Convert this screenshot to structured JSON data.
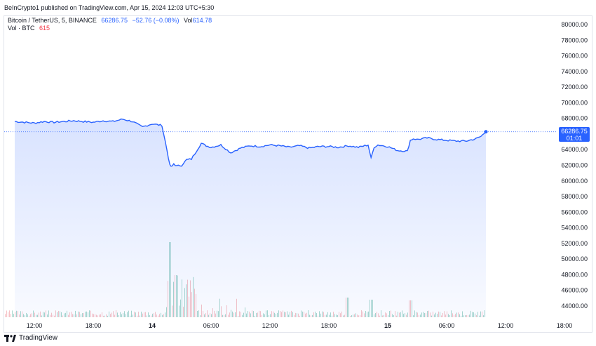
{
  "header": {
    "publish_line": "BeInCrypto1 published on TradingView.com, Apr 15, 2024 12:03 UTC+5:30"
  },
  "legend": {
    "symbol": "Bitcoin / TetherUS, 5, BINANCE",
    "last": "66286.75",
    "change": "−52.76 (−0.08%)",
    "vol_label": "Vol",
    "vol_value": "614.78",
    "vol_series_label": "Vol · BTC",
    "vol_series_value": "615"
  },
  "price_tag": {
    "price": "66286.75",
    "countdown": "01:01"
  },
  "footer": {
    "brand": "TradingView"
  },
  "colors": {
    "line": "#2962ff",
    "area_top": "#2962ff",
    "vol_up": "#a7d7cd",
    "vol_down": "#f6c2c6"
  },
  "chart_data": {
    "type": "area",
    "title": "Bitcoin / TetherUS, 5, BINANCE",
    "x_ticks": [
      "12:00",
      "18:00",
      "14",
      "06:00",
      "12:00",
      "18:00",
      "15",
      "06:00",
      "12:00",
      "18:00"
    ],
    "y_ticks": [
      "80000.00",
      "78000.00",
      "76000.00",
      "74000.00",
      "72000.00",
      "70000.00",
      "68000.00",
      "66000.00",
      "64000.00",
      "62000.00",
      "60000.00",
      "58000.00",
      "56000.00",
      "54000.00",
      "52000.00",
      "50000.00",
      "48000.00",
      "46000.00",
      "44000.00"
    ],
    "ylim": [
      43000,
      81000
    ],
    "x_hours_range": [
      -2,
      46
    ],
    "series": [
      {
        "values_x_hours": [
          -2,
          -1,
          0,
          1,
          2,
          3,
          4,
          5,
          6,
          7,
          8,
          9,
          10,
          11,
          12,
          12.5,
          13,
          13.5,
          13.8,
          14,
          14.2,
          14.5,
          15,
          15.5,
          16,
          17,
          17.5,
          18,
          19,
          20,
          21,
          22,
          23,
          24,
          25,
          26,
          27,
          28,
          29,
          30,
          31,
          32,
          33,
          34,
          34.3,
          34.6,
          35,
          36,
          37,
          38,
          38.3,
          38.6,
          39,
          40,
          41,
          42,
          43,
          44,
          45,
          45.5,
          46
        ],
        "values_price": [
          67600,
          67500,
          67400,
          67600,
          67500,
          67600,
          67700,
          67600,
          67500,
          67700,
          67600,
          67900,
          67600,
          66900,
          67300,
          67200,
          67100,
          64000,
          62000,
          61800,
          62200,
          61900,
          62000,
          62700,
          62800,
          64800,
          64500,
          64300,
          64600,
          63600,
          64200,
          64500,
          64400,
          64600,
          64500,
          64300,
          64500,
          64200,
          64400,
          64400,
          64300,
          64500,
          64300,
          64600,
          62900,
          64300,
          64600,
          64400,
          63900,
          63800,
          65200,
          65400,
          65300,
          65500,
          65300,
          65200,
          65100,
          65100,
          65400,
          65700,
          66286.75
        ]
      }
    ],
    "volume": {
      "peak": 615
    },
    "last_price": 66286.75
  }
}
